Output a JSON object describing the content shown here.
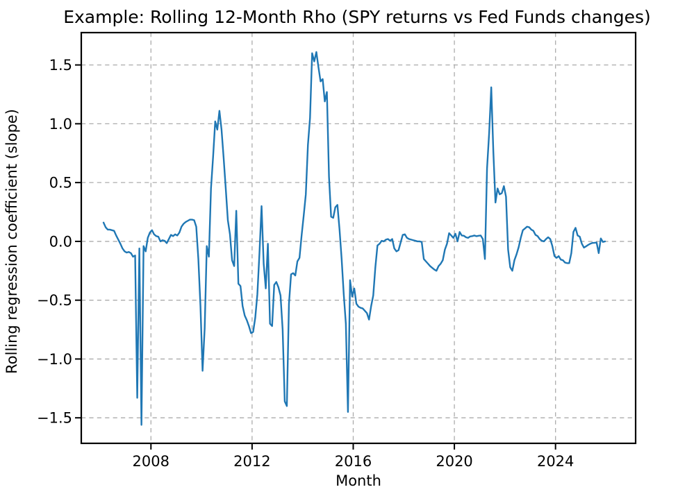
{
  "title": "Example: Rolling 12-Month Rho (SPY returns vs Fed Funds changes)",
  "xlabel": "Month",
  "ylabel": "Rolling regression coefficient (slope)",
  "chart_data": {
    "type": "line",
    "title": "Example: Rolling 12-Month Rho (SPY returns vs Fed Funds changes)",
    "xlabel": "Month",
    "ylabel": "Rolling regression coefficient (slope)",
    "grid": true,
    "grid_style": "dashed",
    "legend": false,
    "line_color": "#1f77b4",
    "grid_color": "#ababab",
    "spine_color": "#000000",
    "xlim": [
      2005.245,
      2027.168
    ],
    "ylim": [
      -1.717,
      1.775
    ],
    "x_tick_values": [
      2008,
      2012,
      2016,
      2020,
      2024
    ],
    "x_tick_labels": [
      "2008",
      "2012",
      "2016",
      "2020",
      "2024"
    ],
    "y_tick_values": [
      1.5,
      1.0,
      0.5,
      0.0,
      -0.5,
      -1.0,
      -1.5
    ],
    "y_tick_labels": [
      "1.5",
      "1.0",
      "0.5",
      "0.0",
      "−0.5",
      "−1.0",
      "−1.5"
    ],
    "x_start": 2006.125,
    "x_step": 0.0833333,
    "values": [
      0.16,
      0.12,
      0.1,
      0.1,
      0.095,
      0.09,
      0.05,
      0.015,
      -0.02,
      -0.06,
      -0.085,
      -0.095,
      -0.09,
      -0.1,
      -0.13,
      -0.12,
      -1.33,
      -0.06,
      -1.56,
      -0.04,
      -0.085,
      0.03,
      0.075,
      0.095,
      0.06,
      0.045,
      0.04,
      0.0,
      0.01,
      0.005,
      -0.015,
      0.02,
      0.055,
      0.045,
      0.06,
      0.05,
      0.075,
      0.125,
      0.15,
      0.165,
      0.175,
      0.185,
      0.185,
      0.18,
      0.125,
      -0.15,
      -0.55,
      -1.1,
      -0.74,
      -0.04,
      -0.13,
      0.45,
      0.72,
      1.02,
      0.95,
      1.11,
      0.95,
      0.71,
      0.45,
      0.18,
      0.06,
      -0.16,
      -0.21,
      0.26,
      -0.36,
      -0.38,
      -0.55,
      -0.63,
      -0.67,
      -0.72,
      -0.78,
      -0.77,
      -0.65,
      -0.45,
      -0.1,
      0.3,
      -0.19,
      -0.4,
      -0.02,
      -0.7,
      -0.72,
      -0.37,
      -0.345,
      -0.39,
      -0.46,
      -0.75,
      -1.36,
      -1.4,
      -0.53,
      -0.28,
      -0.27,
      -0.29,
      -0.17,
      -0.14,
      0.05,
      0.22,
      0.4,
      0.82,
      1.05,
      1.6,
      1.53,
      1.61,
      1.48,
      1.36,
      1.38,
      1.19,
      1.27,
      0.55,
      0.21,
      0.2,
      0.29,
      0.31,
      0.1,
      -0.15,
      -0.45,
      -0.7,
      -1.45,
      -0.33,
      -0.47,
      -0.4,
      -0.53,
      -0.555,
      -0.565,
      -0.57,
      -0.59,
      -0.61,
      -0.665,
      -0.55,
      -0.46,
      -0.22,
      -0.035,
      -0.02,
      0.005,
      0.0,
      0.015,
      0.02,
      0.005,
      0.02,
      -0.06,
      -0.085,
      -0.075,
      -0.01,
      0.055,
      0.06,
      0.03,
      0.02,
      0.015,
      0.01,
      0.005,
      0.0,
      0.0,
      -0.005,
      -0.15,
      -0.17,
      -0.19,
      -0.21,
      -0.225,
      -0.24,
      -0.25,
      -0.21,
      -0.19,
      -0.16,
      -0.07,
      -0.02,
      0.07,
      0.05,
      0.03,
      0.065,
      0.0,
      0.08,
      0.05,
      0.048,
      0.035,
      0.03,
      0.042,
      0.045,
      0.05,
      0.044,
      0.048,
      0.05,
      0.02,
      -0.15,
      0.62,
      0.92,
      1.31,
      0.76,
      0.33,
      0.45,
      0.4,
      0.41,
      0.47,
      0.38,
      -0.07,
      -0.22,
      -0.25,
      -0.16,
      -0.11,
      -0.05,
      0.03,
      0.095,
      0.11,
      0.125,
      0.12,
      0.1,
      0.09,
      0.055,
      0.045,
      0.02,
      0.005,
      0.0,
      0.02,
      0.035,
      0.02,
      -0.04,
      -0.125,
      -0.14,
      -0.125,
      -0.155,
      -0.16,
      -0.18,
      -0.185,
      -0.185,
      -0.1,
      0.08,
      0.115,
      0.05,
      0.04,
      -0.02,
      -0.053,
      -0.042,
      -0.03,
      -0.02,
      -0.013,
      -0.012,
      -0.01,
      -0.1,
      0.025,
      -0.005,
      0.0
    ]
  }
}
